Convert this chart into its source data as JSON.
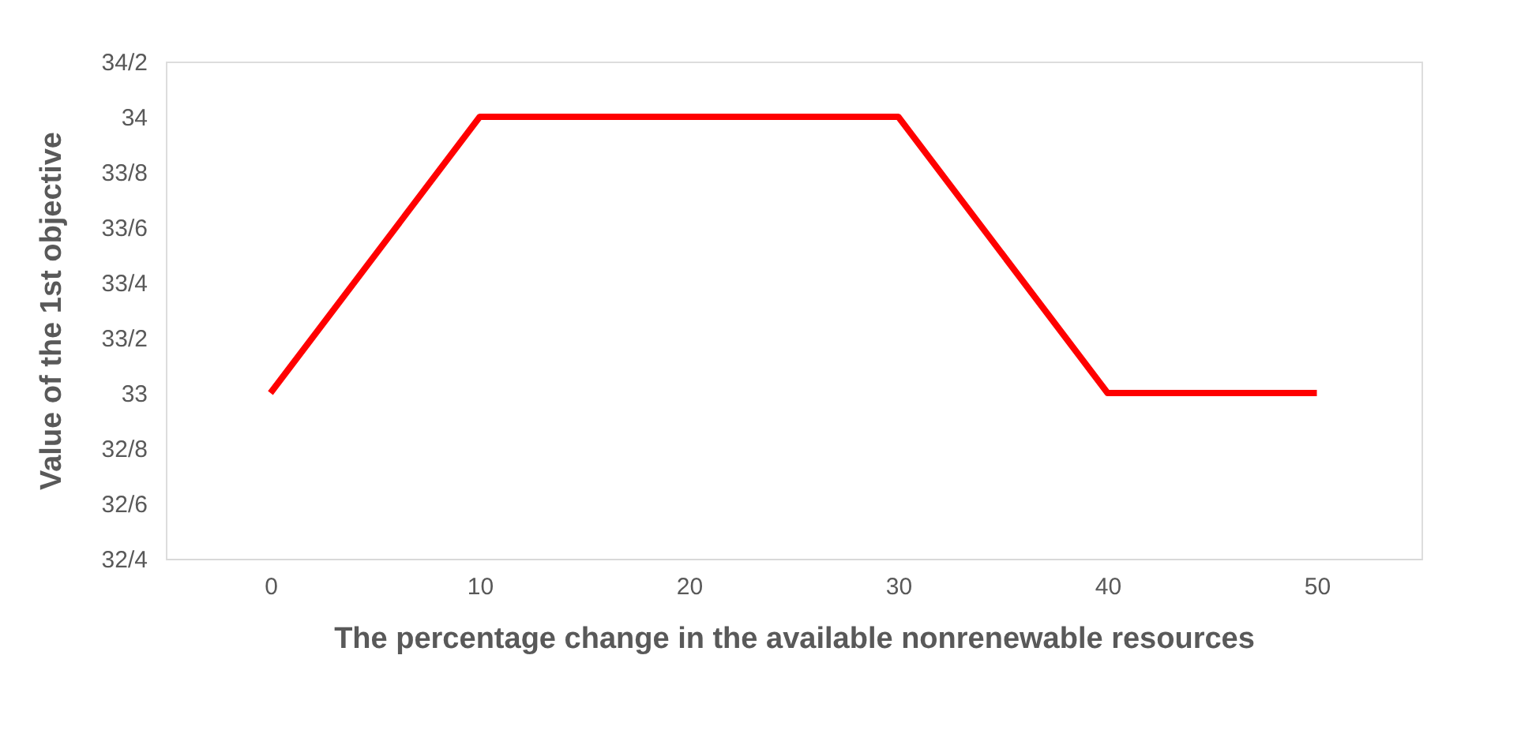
{
  "chart_data": {
    "type": "line",
    "xlabel": "The percentage change in the available nonrenewable resources",
    "ylabel": "Value of the 1st objective",
    "categories": [
      "0",
      "10",
      "20",
      "30",
      "40",
      "50"
    ],
    "series": [
      {
        "color": "#ff0000",
        "values": [
          33,
          34,
          34,
          34,
          33,
          33
        ]
      }
    ],
    "ylim": [
      32.4,
      34.2
    ],
    "yticks": [
      {
        "value": 32.4,
        "label": "32/4"
      },
      {
        "value": 32.6,
        "label": "32/6"
      },
      {
        "value": 32.8,
        "label": "32/8"
      },
      33,
      {
        "value": 33.2,
        "label": "33/2"
      },
      {
        "value": 33.4,
        "label": "33/4"
      },
      {
        "value": 33.6,
        "label": "33/6"
      },
      {
        "value": 33.8,
        "label": "33/8"
      },
      34,
      {
        "value": 34.2,
        "label": "34/2"
      }
    ],
    "grid": false,
    "marker": "none",
    "line_style": "solid"
  }
}
